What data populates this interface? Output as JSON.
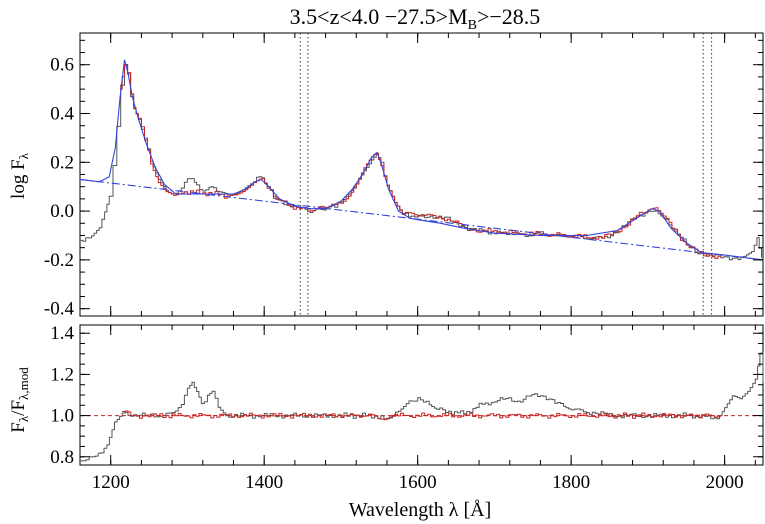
{
  "chart_data": [
    {
      "type": "line",
      "title": "3.5<z<4.0 −27.5>M",
      "title_sub": "B",
      "title_tail": ">−28.5",
      "xlabel": "",
      "ylabel": "log F",
      "ylabel_sub": "λ",
      "xlim": [
        1160,
        2050
      ],
      "ylim": [
        -0.43,
        0.73
      ],
      "yticks": [
        "-0.4",
        "-0.2",
        "0.0",
        "0.2",
        "0.4",
        "0.6"
      ],
      "ytick_values": [
        -0.4,
        -0.2,
        0.0,
        0.2,
        0.4,
        0.6
      ],
      "grid": false,
      "vlines_dotted": [
        1447,
        1457,
        1972,
        1983
      ],
      "series": [
        {
          "color": "#555555",
          "style": "histogram",
          "points": [
            [
              1160,
              -0.12
            ],
            [
              1175,
              -0.1
            ],
            [
              1185,
              -0.07
            ],
            [
              1192,
              0.0
            ],
            [
              1198,
              0.06
            ],
            [
              1203,
              0.18
            ],
            [
              1208,
              0.35
            ],
            [
              1213,
              0.52
            ],
            [
              1218,
              0.6
            ],
            [
              1222,
              0.56
            ],
            [
              1226,
              0.48
            ],
            [
              1230,
              0.42
            ],
            [
              1236,
              0.38
            ],
            [
              1244,
              0.3
            ],
            [
              1252,
              0.2
            ],
            [
              1262,
              0.12
            ],
            [
              1272,
              0.08
            ],
            [
              1282,
              0.07
            ],
            [
              1292,
              0.1
            ],
            [
              1300,
              0.13
            ],
            [
              1306,
              0.14
            ],
            [
              1312,
              0.11
            ],
            [
              1320,
              0.08
            ],
            [
              1328,
              0.09
            ],
            [
              1334,
              0.09
            ],
            [
              1342,
              0.07
            ],
            [
              1352,
              0.06
            ],
            [
              1362,
              0.07
            ],
            [
              1372,
              0.09
            ],
            [
              1382,
              0.11
            ],
            [
              1390,
              0.13
            ],
            [
              1397,
              0.13
            ],
            [
              1404,
              0.1
            ],
            [
              1412,
              0.06
            ],
            [
              1422,
              0.04
            ],
            [
              1434,
              0.02
            ],
            [
              1446,
              0.01
            ],
            [
              1460,
              0.0
            ],
            [
              1474,
              0.01
            ],
            [
              1488,
              0.02
            ],
            [
              1500,
              0.04
            ],
            [
              1510,
              0.07
            ],
            [
              1520,
              0.11
            ],
            [
              1530,
              0.17
            ],
            [
              1540,
              0.22
            ],
            [
              1546,
              0.23
            ],
            [
              1552,
              0.19
            ],
            [
              1560,
              0.1
            ],
            [
              1570,
              0.03
            ],
            [
              1580,
              -0.01
            ],
            [
              1592,
              -0.02
            ],
            [
              1605,
              -0.02
            ],
            [
              1620,
              -0.02
            ],
            [
              1635,
              -0.03
            ],
            [
              1650,
              -0.05
            ],
            [
              1665,
              -0.07
            ],
            [
              1680,
              -0.08
            ],
            [
              1700,
              -0.09
            ],
            [
              1720,
              -0.09
            ],
            [
              1740,
              -0.1
            ],
            [
              1760,
              -0.09
            ],
            [
              1780,
              -0.1
            ],
            [
              1800,
              -0.1
            ],
            [
              1820,
              -0.11
            ],
            [
              1840,
              -0.11
            ],
            [
              1855,
              -0.09
            ],
            [
              1870,
              -0.06
            ],
            [
              1885,
              -0.02
            ],
            [
              1900,
              0.0
            ],
            [
              1910,
              0.01
            ],
            [
              1920,
              -0.02
            ],
            [
              1935,
              -0.08
            ],
            [
              1950,
              -0.14
            ],
            [
              1965,
              -0.17
            ],
            [
              1980,
              -0.18
            ],
            [
              1995,
              -0.19
            ],
            [
              2010,
              -0.19
            ],
            [
              2025,
              -0.19
            ],
            [
              2035,
              -0.16
            ],
            [
              2042,
              -0.11
            ],
            [
              2048,
              -0.18
            ]
          ]
        },
        {
          "color": "#cc2222",
          "style": "histogram",
          "range": [
            1212,
            1995
          ],
          "points": [
            [
              1212,
              0.5
            ],
            [
              1218,
              0.6
            ],
            [
              1222,
              0.56
            ],
            [
              1226,
              0.48
            ],
            [
              1230,
              0.42
            ],
            [
              1236,
              0.38
            ],
            [
              1244,
              0.3
            ],
            [
              1252,
              0.2
            ],
            [
              1262,
              0.12
            ],
            [
              1272,
              0.08
            ],
            [
              1282,
              0.07
            ],
            [
              1292,
              0.08
            ],
            [
              1340,
              0.07
            ],
            [
              1352,
              0.06
            ],
            [
              1362,
              0.07
            ],
            [
              1372,
              0.09
            ],
            [
              1382,
              0.11
            ],
            [
              1390,
              0.13
            ],
            [
              1397,
              0.13
            ],
            [
              1404,
              0.1
            ],
            [
              1412,
              0.06
            ],
            [
              1422,
              0.04
            ],
            [
              1434,
              0.02
            ],
            [
              1446,
              0.01
            ],
            [
              1460,
              0.0
            ],
            [
              1474,
              0.01
            ],
            [
              1488,
              0.02
            ],
            [
              1500,
              0.04
            ],
            [
              1510,
              0.07
            ],
            [
              1520,
              0.11
            ],
            [
              1530,
              0.17
            ],
            [
              1540,
              0.22
            ],
            [
              1546,
              0.23
            ],
            [
              1552,
              0.19
            ],
            [
              1560,
              0.1
            ],
            [
              1570,
              0.03
            ],
            [
              1580,
              -0.01
            ],
            [
              1620,
              -0.02
            ],
            [
              1635,
              -0.03
            ],
            [
              1650,
              -0.05
            ],
            [
              1665,
              -0.07
            ],
            [
              1680,
              -0.08
            ],
            [
              1840,
              -0.11
            ],
            [
              1855,
              -0.09
            ],
            [
              1870,
              -0.06
            ],
            [
              1885,
              -0.02
            ],
            [
              1900,
              0.0
            ],
            [
              1910,
              0.01
            ],
            [
              1920,
              -0.02
            ],
            [
              1935,
              -0.08
            ],
            [
              1950,
              -0.14
            ],
            [
              1965,
              -0.17
            ],
            [
              1980,
              -0.18
            ],
            [
              1995,
              -0.19
            ]
          ]
        },
        {
          "color": "#3344dd",
          "style": "smooth",
          "points": [
            [
              1160,
              0.13
            ],
            [
              1185,
              0.12
            ],
            [
              1198,
              0.14
            ],
            [
              1206,
              0.26
            ],
            [
              1212,
              0.46
            ],
            [
              1218,
              0.62
            ],
            [
              1223,
              0.56
            ],
            [
              1228,
              0.47
            ],
            [
              1236,
              0.38
            ],
            [
              1246,
              0.28
            ],
            [
              1258,
              0.18
            ],
            [
              1270,
              0.11
            ],
            [
              1285,
              0.07
            ],
            [
              1300,
              0.07
            ],
            [
              1320,
              0.07
            ],
            [
              1340,
              0.07
            ],
            [
              1360,
              0.07
            ],
            [
              1376,
              0.09
            ],
            [
              1388,
              0.12
            ],
            [
              1396,
              0.13
            ],
            [
              1406,
              0.1
            ],
            [
              1420,
              0.05
            ],
            [
              1440,
              0.02
            ],
            [
              1460,
              0.01
            ],
            [
              1480,
              0.01
            ],
            [
              1500,
              0.04
            ],
            [
              1515,
              0.09
            ],
            [
              1528,
              0.15
            ],
            [
              1540,
              0.22
            ],
            [
              1547,
              0.24
            ],
            [
              1553,
              0.19
            ],
            [
              1562,
              0.09
            ],
            [
              1575,
              0.0
            ],
            [
              1590,
              -0.03
            ],
            [
              1610,
              -0.04
            ],
            [
              1630,
              -0.05
            ],
            [
              1660,
              -0.07
            ],
            [
              1700,
              -0.09
            ],
            [
              1760,
              -0.1
            ],
            [
              1820,
              -0.1
            ],
            [
              1860,
              -0.08
            ],
            [
              1885,
              -0.03
            ],
            [
              1905,
              0.01
            ],
            [
              1915,
              0.0
            ],
            [
              1930,
              -0.07
            ],
            [
              1950,
              -0.13
            ],
            [
              1970,
              -0.17
            ],
            [
              2000,
              -0.18
            ],
            [
              2050,
              -0.2
            ]
          ]
        },
        {
          "color": "#3344dd",
          "style": "dash-dot",
          "points": [
            [
              1160,
              0.13
            ],
            [
              2050,
              -0.2
            ]
          ]
        }
      ]
    },
    {
      "type": "line",
      "xlabel": "Wavelength λ [Å]",
      "ylabel": "F",
      "ylabel_parts": [
        "λ",
        "/F",
        "λ,mod"
      ],
      "xlim": [
        1160,
        2050
      ],
      "ylim": [
        0.76,
        1.44
      ],
      "xticks": [
        "1200",
        "1400",
        "1600",
        "1800",
        "2000"
      ],
      "xtick_values": [
        1200,
        1400,
        1600,
        1800,
        2000
      ],
      "yticks": [
        "0.8",
        "1.0",
        "1.2",
        "1.4"
      ],
      "ytick_values": [
        0.8,
        1.0,
        1.2,
        1.4
      ],
      "grid": false,
      "reference_line": {
        "y": 1.0,
        "color": "#cc2222",
        "style": "dashed"
      },
      "series": [
        {
          "color": "#555555",
          "style": "histogram",
          "points": [
            [
              1160,
              0.78
            ],
            [
              1180,
              0.8
            ],
            [
              1195,
              0.86
            ],
            [
              1205,
              0.98
            ],
            [
              1215,
              1.02
            ],
            [
              1230,
              1.0
            ],
            [
              1260,
              1.0
            ],
            [
              1280,
              1.01
            ],
            [
              1292,
              1.06
            ],
            [
              1300,
              1.13
            ],
            [
              1306,
              1.17
            ],
            [
              1312,
              1.12
            ],
            [
              1318,
              1.05
            ],
            [
              1326,
              1.1
            ],
            [
              1332,
              1.12
            ],
            [
              1340,
              1.05
            ],
            [
              1350,
              1.0
            ],
            [
              1400,
              1.0
            ],
            [
              1450,
              1.0
            ],
            [
              1500,
              1.0
            ],
            [
              1540,
              1.0
            ],
            [
              1560,
              0.98
            ],
            [
              1575,
              1.03
            ],
            [
              1585,
              1.07
            ],
            [
              1600,
              1.08
            ],
            [
              1615,
              1.05
            ],
            [
              1625,
              1.03
            ],
            [
              1640,
              1.02
            ],
            [
              1660,
              1.01
            ],
            [
              1680,
              1.05
            ],
            [
              1700,
              1.07
            ],
            [
              1715,
              1.08
            ],
            [
              1730,
              1.07
            ],
            [
              1745,
              1.1
            ],
            [
              1760,
              1.09
            ],
            [
              1775,
              1.08
            ],
            [
              1790,
              1.05
            ],
            [
              1800,
              1.03
            ],
            [
              1820,
              1.02
            ],
            [
              1850,
              1.0
            ],
            [
              1900,
              1.0
            ],
            [
              1950,
              1.0
            ],
            [
              1990,
              0.99
            ],
            [
              2000,
              1.05
            ],
            [
              2010,
              1.1
            ],
            [
              2020,
              1.08
            ],
            [
              2030,
              1.12
            ],
            [
              2040,
              1.18
            ],
            [
              2046,
              1.3
            ],
            [
              2050,
              1.15
            ]
          ]
        },
        {
          "color": "#cc2222",
          "style": "histogram",
          "points": [
            [
              1215,
              1.02
            ],
            [
              1230,
              1.0
            ],
            [
              1260,
              1.0
            ],
            [
              1280,
              1.0
            ],
            [
              1350,
              1.0
            ],
            [
              1400,
              1.0
            ],
            [
              1450,
              1.0
            ],
            [
              1500,
              1.0
            ],
            [
              1540,
              1.0
            ],
            [
              1560,
              0.98
            ],
            [
              1570,
              1.0
            ],
            [
              1840,
              1.0
            ],
            [
              1900,
              1.0
            ],
            [
              1950,
              1.0
            ],
            [
              1975,
              1.0
            ],
            [
              1995,
              1.0
            ]
          ]
        }
      ]
    }
  ]
}
